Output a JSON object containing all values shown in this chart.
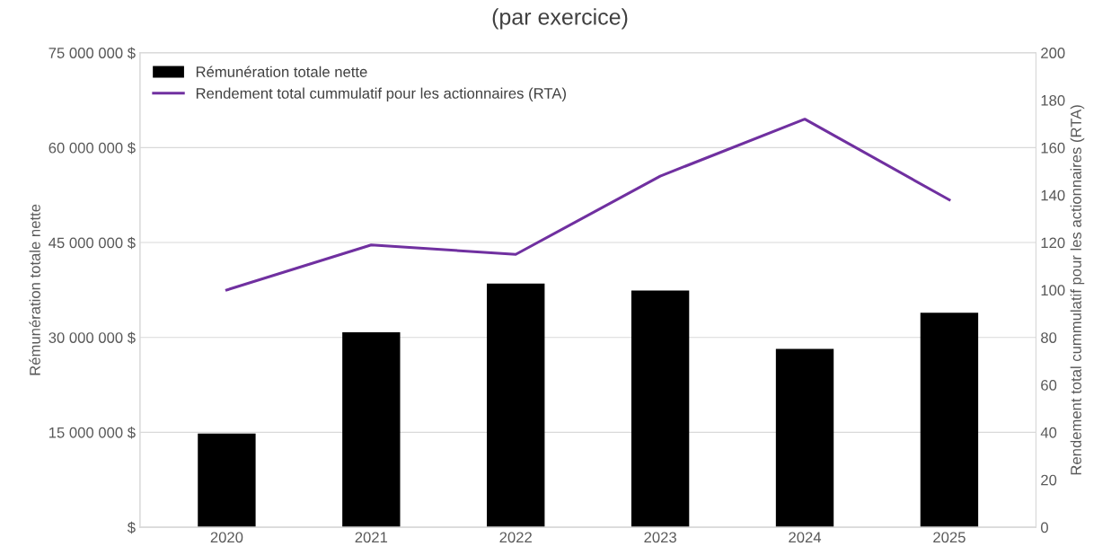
{
  "chart_data": {
    "type": "bar",
    "title": "(par exercice)",
    "categories": [
      "2020",
      "2021",
      "2022",
      "2023",
      "2024",
      "2025"
    ],
    "series": [
      {
        "name": "Rémunération totale nette",
        "color": "#000000",
        "values": [
          14800000,
          30800000,
          38500000,
          37400000,
          28200000,
          33900000
        ]
      },
      {
        "name": "Rendement total cummulatif pour les actionnaires (RTA)",
        "type": "line",
        "axis": "y2",
        "color": "#7030a0",
        "values": [
          100,
          119,
          115,
          148,
          172,
          138
        ]
      }
    ],
    "ylabel": "Rémunération totale nette",
    "y2label": "Rendement total cummulatif pour les actionnaires (RTA)",
    "ylim": [
      0,
      75000000
    ],
    "yticks": [
      {
        "value": 0,
        "label": "$"
      },
      {
        "value": 15000000,
        "label": "15 000 000 $"
      },
      {
        "value": 30000000,
        "label": "30 000 000 $"
      },
      {
        "value": 45000000,
        "label": "45 000 000 $"
      },
      {
        "value": 60000000,
        "label": "60 000 000 $"
      },
      {
        "value": 75000000,
        "label": "75 000 000 $"
      }
    ],
    "y2lim": [
      0,
      200
    ],
    "y2ticks": [
      0,
      20,
      40,
      60,
      80,
      100,
      120,
      140,
      160,
      180,
      200
    ],
    "grid": "y",
    "legend": "top left",
    "marker": "none",
    "line_style": "solid"
  }
}
